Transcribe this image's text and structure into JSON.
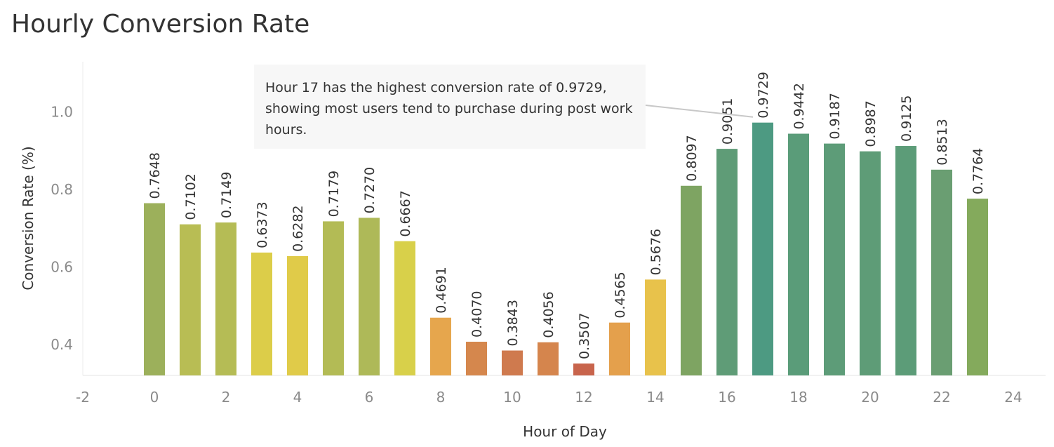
{
  "title": "Hourly Conversion Rate",
  "annotation": "Hour 17 has the highest conversion rate of 0.9729, showing most users tend to purchase during post work hours.",
  "chart_data": {
    "type": "bar",
    "title": "Hourly Conversion Rate",
    "xlabel": "Hour of Day",
    "ylabel": "Conversion Rate (%)",
    "xlim": [
      -2.5,
      25
    ],
    "ylim": [
      0.32,
      1.13
    ],
    "x_ticks": [
      -2,
      0,
      2,
      4,
      6,
      8,
      10,
      12,
      14,
      16,
      18,
      20,
      22,
      24
    ],
    "y_ticks": [
      0.4,
      0.6,
      0.8,
      1.0
    ],
    "y_tick_labels": [
      "0.4",
      "0.6",
      "0.8",
      "1.0"
    ],
    "categories": [
      0,
      1,
      2,
      3,
      4,
      5,
      6,
      7,
      8,
      9,
      10,
      11,
      12,
      13,
      14,
      15,
      16,
      17,
      18,
      19,
      20,
      21,
      22,
      23
    ],
    "values": [
      0.7648,
      0.7102,
      0.7149,
      0.6373,
      0.6282,
      0.7179,
      0.727,
      0.6667,
      0.4691,
      0.407,
      0.3843,
      0.4056,
      0.3507,
      0.4565,
      0.5676,
      0.8097,
      0.9051,
      0.9729,
      0.9442,
      0.9187,
      0.8987,
      0.9125,
      0.8513,
      0.7764
    ],
    "labels": [
      "0.7648",
      "0.7102",
      "0.7149",
      "0.6373",
      "0.6282",
      "0.7179",
      "0.7270",
      "0.6667",
      "0.4691",
      "0.4070",
      "0.3843",
      "0.4056",
      "0.3507",
      "0.4565",
      "0.5676",
      "0.8097",
      "0.9051",
      "0.9729",
      "0.9442",
      "0.9187",
      "0.8987",
      "0.9125",
      "0.8513",
      "0.7764"
    ],
    "colors": [
      "#9cb05b",
      "#b8bd54",
      "#b5bc55",
      "#dccd49",
      "#e0cb49",
      "#b3bb55",
      "#aeb958",
      "#d8d04a",
      "#e6a64d",
      "#d5874d",
      "#cf7a4e",
      "#d5854d",
      "#c8644c",
      "#e4a04c",
      "#e8c24b",
      "#7ea462",
      "#5f9c77",
      "#4d9a82",
      "#5a9c79",
      "#5d9c78",
      "#5e9c77",
      "#5c9c78",
      "#6a9e72",
      "#84aa5c"
    ],
    "annotation_target_x": 17,
    "grid": false
  }
}
